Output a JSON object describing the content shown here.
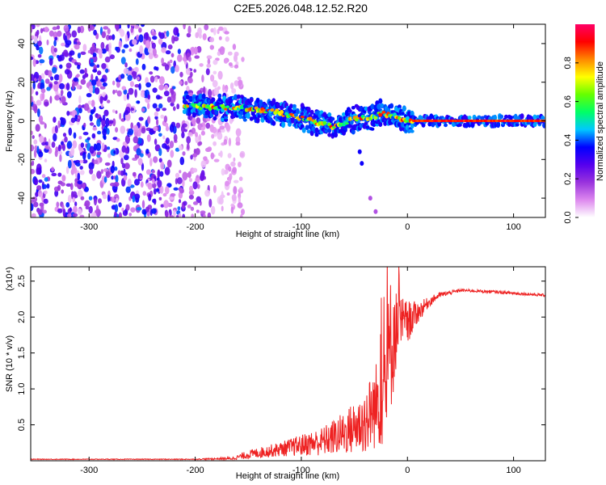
{
  "chart_data": [
    {
      "type": "heatmap",
      "title": "C2E5.2026.048.12.52.R20",
      "xlabel": "Height of straight line (km)",
      "ylabel": "Frequency (Hz)",
      "xlim": [
        -355,
        130
      ],
      "ylim": [
        -50,
        50
      ],
      "x_ticks": [
        -300,
        -200,
        -100,
        0,
        100
      ],
      "y_ticks": [
        -40,
        -20,
        0,
        20,
        40
      ],
      "colorbar": {
        "label": "Normalized spectral amplitude",
        "range": [
          0,
          1
        ],
        "ticks": [
          "0.0",
          "0.2",
          "0.4",
          "0.6",
          "0.8"
        ],
        "colors": [
          "#ffffff",
          "#dd88ee",
          "#9933dd",
          "#5500ee",
          "#0000ff",
          "#00c8ff",
          "#00ff66",
          "#66ff00",
          "#ffff00",
          "#ff8800",
          "#ff0000",
          "#ff0066"
        ]
      },
      "noise_region_km": [
        -355,
        -165
      ],
      "frequency_trace": {
        "x": [
          -210,
          -180,
          -160,
          -140,
          -120,
          -100,
          -85,
          -70,
          -55,
          -45,
          -35,
          -25,
          -15,
          -5,
          5,
          130
        ],
        "y": [
          8,
          7,
          7,
          6,
          4,
          2,
          -1,
          -3,
          0,
          2,
          1,
          4,
          3,
          1,
          0,
          0
        ]
      },
      "branch_trace": {
        "x": [
          -45,
          -43,
          -35,
          -30
        ],
        "y": [
          -16,
          -22,
          -40,
          -47
        ]
      }
    },
    {
      "type": "line",
      "title": "",
      "xlabel": "Height of straight line (km)",
      "ylabel": "SNR (10 * v/v)",
      "y_scale_label": "(x10⁴)",
      "xlim": [
        -355,
        130
      ],
      "ylim": [
        0,
        2.7
      ],
      "x_ticks": [
        -300,
        -200,
        -100,
        0,
        100
      ],
      "y_ticks": [
        0.5,
        1.0,
        1.5,
        2.0,
        2.5
      ],
      "line_color": "#ee2222",
      "series": [
        {
          "name": "SNR",
          "x": [
            -355,
            -300,
            -250,
            -200,
            -165,
            -150,
            -120,
            -100,
            -80,
            -60,
            -40,
            -30,
            -20,
            -15,
            -10,
            0,
            10,
            20,
            30,
            50,
            80,
            100,
            130
          ],
          "y": [
            0.02,
            0.02,
            0.02,
            0.02,
            0.03,
            0.08,
            0.15,
            0.2,
            0.25,
            0.35,
            0.5,
            0.7,
            1.0,
            1.6,
            1.8,
            1.9,
            2.05,
            2.2,
            2.3,
            2.37,
            2.35,
            2.33,
            2.3
          ],
          "noise_amplitude": [
            0.005,
            0.005,
            0.005,
            0.006,
            0.02,
            0.06,
            0.1,
            0.15,
            0.2,
            0.3,
            0.45,
            0.6,
            0.9,
            1.0,
            0.5,
            0.3,
            0.15,
            0.07,
            0.04,
            0.02,
            0.02,
            0.02,
            0.02
          ]
        }
      ]
    }
  ]
}
